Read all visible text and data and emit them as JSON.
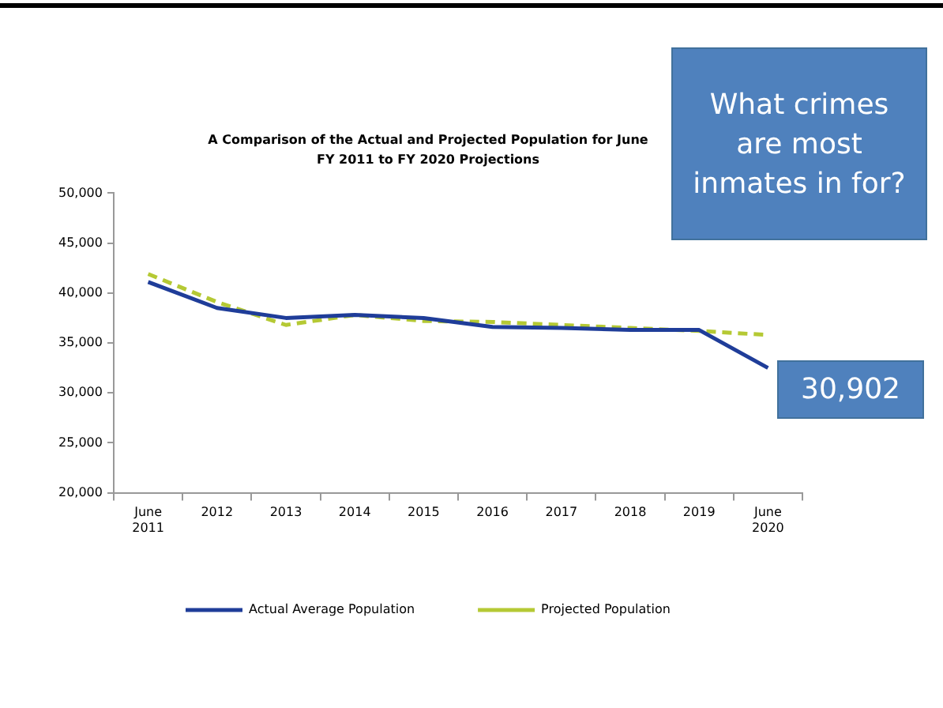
{
  "chart_data": {
    "type": "line",
    "title": "A Comparison of the Actual and Projected Population for June",
    "subtitle": "FY 2011 to FY 2020 Projections",
    "categories": [
      "June 2011",
      "2012",
      "2013",
      "2014",
      "2015",
      "2016",
      "2017",
      "2018",
      "2019",
      "June 2020"
    ],
    "series": [
      {
        "name": "Actual Average Population",
        "color": "#1f3d99",
        "line_style": "solid",
        "values": [
          41100,
          38500,
          37500,
          37800,
          37500,
          36600,
          36500,
          36300,
          36300,
          32500
        ]
      },
      {
        "name": "Projected Population",
        "color": "#b5c934",
        "line_style": "dashed",
        "values": [
          41900,
          39100,
          36800,
          37800,
          37200,
          37100,
          36800,
          36500,
          36200,
          35800
        ]
      }
    ],
    "ylim": [
      20000,
      50000
    ],
    "yticks": [
      {
        "value": 20000,
        "label": "20,000"
      },
      {
        "value": 25000,
        "label": "25,000"
      },
      {
        "value": 30000,
        "label": "30,000"
      },
      {
        "value": 35000,
        "label": "35,000"
      },
      {
        "value": 40000,
        "label": "40,000"
      },
      {
        "value": 45000,
        "label": "45,000"
      },
      {
        "value": 50000,
        "label": "50,000"
      }
    ],
    "grid": false,
    "legend": "bottom",
    "marker": "none",
    "annotations": [
      "What crimes are most inmates in for?",
      "30,902"
    ]
  }
}
